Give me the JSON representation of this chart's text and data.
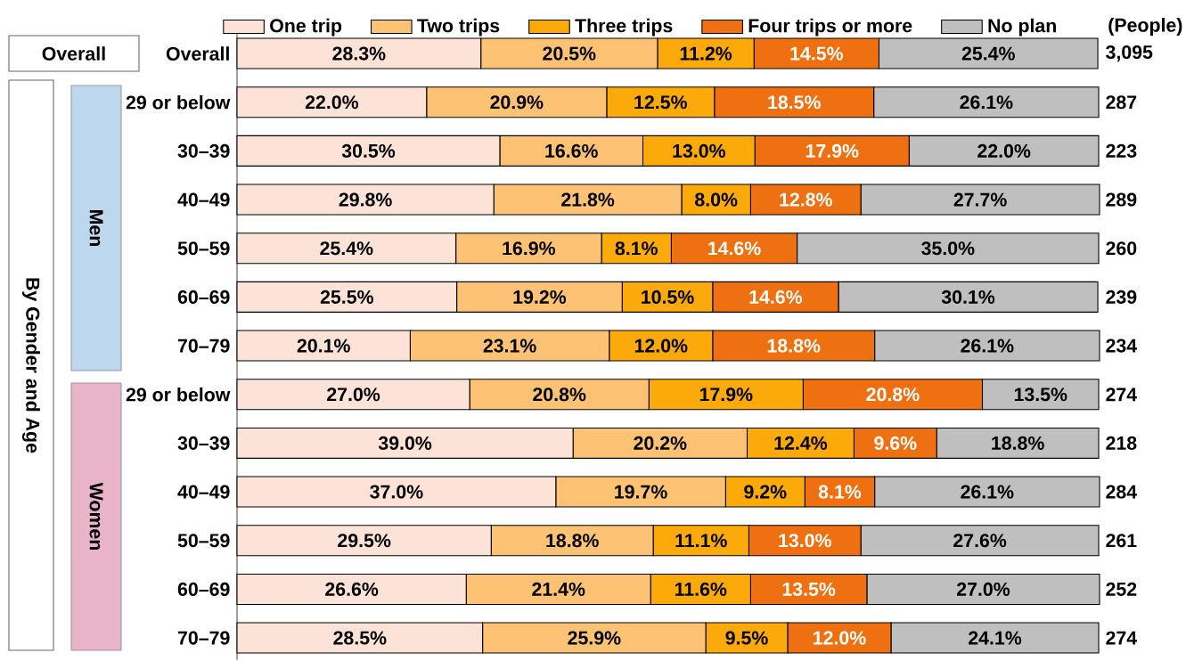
{
  "chart_data": {
    "type": "bar",
    "orientation": "horizontal",
    "stacked": true,
    "legend": "top",
    "tick_labels": "y",
    "categories": [
      "Overall",
      "29 or below",
      "30–39",
      "40–49",
      "50–59",
      "60–69",
      "70–79",
      "29 or below",
      "30–39",
      "40–49",
      "50–59",
      "60–69",
      "70–79"
    ],
    "series": [
      {
        "name": "One trip",
        "color": "#fde3d7",
        "values": [
          28.3,
          22.0,
          30.5,
          29.8,
          25.4,
          25.5,
          20.1,
          27.0,
          39.0,
          37.0,
          29.5,
          26.6,
          28.5
        ],
        "value_labels": [
          "28.3%",
          "22.0%",
          "30.5%",
          "29.8%",
          "25.4%",
          "25.5%",
          "20.1%",
          "27.0%",
          "39.0%",
          "37.0%",
          "29.5%",
          "26.6%",
          "28.5%"
        ]
      },
      {
        "name": "Two trips",
        "color": "#fdc273",
        "values": [
          20.5,
          20.9,
          16.6,
          21.8,
          16.9,
          19.2,
          23.1,
          20.8,
          20.2,
          19.7,
          18.8,
          21.4,
          25.9
        ],
        "value_labels": [
          "20.5%",
          "20.9%",
          "16.6%",
          "21.8%",
          "16.9%",
          "19.2%",
          "23.1%",
          "20.8%",
          "20.2%",
          "19.7%",
          "18.8%",
          "21.4%",
          "25.9%"
        ]
      },
      {
        "name": "Three trips",
        "color": "#fca90a",
        "values": [
          11.2,
          12.5,
          13.0,
          8.0,
          8.1,
          10.5,
          12.0,
          17.9,
          12.4,
          9.2,
          11.1,
          11.6,
          9.5
        ],
        "value_labels": [
          "11.2%",
          "12.5%",
          "13.0%",
          "8.0%",
          "8.1%",
          "10.5%",
          "12.0%",
          "17.9%",
          "12.4%",
          "9.2%",
          "11.1%",
          "11.6%",
          "9.5%"
        ]
      },
      {
        "name": "Four trips or more",
        "color": "#ef7010",
        "values": [
          14.5,
          18.5,
          17.9,
          12.8,
          14.6,
          14.6,
          18.8,
          20.8,
          9.6,
          8.1,
          13.0,
          13.5,
          12.0
        ],
        "value_labels": [
          "14.5%",
          "18.5%",
          "17.9%",
          "12.8%",
          "14.6%",
          "14.6%",
          "18.8%",
          "20.8%",
          "9.6%",
          "8.1%",
          "13.0%",
          "13.5%",
          "12.0%"
        ]
      },
      {
        "name": "No plan",
        "color": "#bfbfbf",
        "values": [
          25.4,
          26.1,
          22.0,
          27.7,
          35.0,
          30.1,
          26.1,
          13.5,
          18.8,
          26.1,
          27.6,
          27.0,
          24.1
        ],
        "value_labels": [
          "25.4%",
          "26.1%",
          "22.0%",
          "27.7%",
          "35.0%",
          "30.1%",
          "26.1%",
          "13.5%",
          "18.8%",
          "26.1%",
          "27.6%",
          "27.0%",
          "24.1%"
        ]
      }
    ],
    "annotations": [
      "(People)",
      "3,095",
      "287",
      "223",
      "289",
      "260",
      "239",
      "234",
      "274",
      "218",
      "284",
      "261",
      "252",
      "274",
      "Overall",
      "By Gender and Age",
      "Men",
      "Women"
    ]
  }
}
